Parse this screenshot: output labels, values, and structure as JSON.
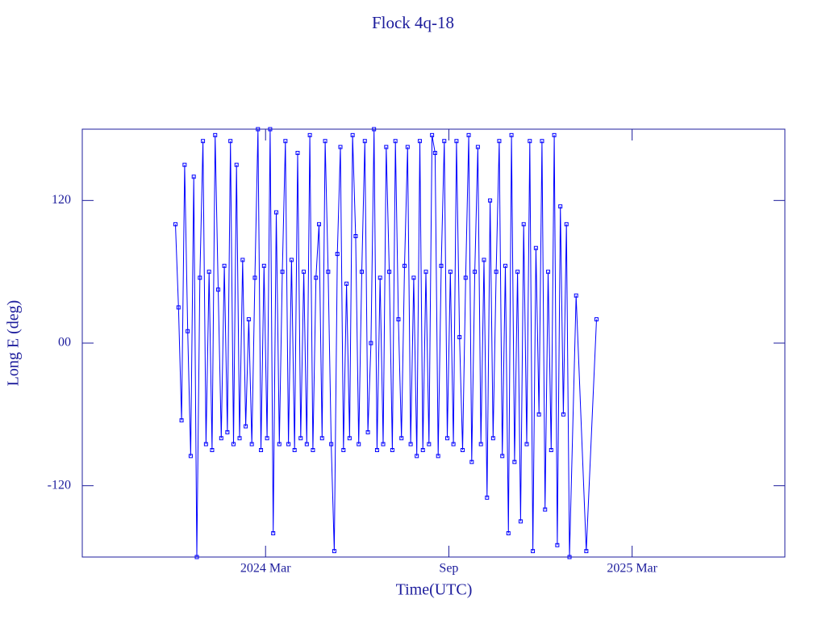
{
  "chart_data": {
    "type": "line",
    "title": "Flock 4q-18",
    "xlabel": "Time(UTC)",
    "ylabel": "Long E (deg)",
    "series": [
      {
        "color": "#0000ff",
        "x": [
          "2023-12",
          "2023-12",
          "2023-12",
          "2023-12",
          "2023-12",
          "2023-12",
          "2023-12",
          "2023-12",
          "2023-12",
          "2023-12",
          "2024-01",
          "2024-01",
          "2024-01",
          "2024-01",
          "2024-01",
          "2024-01",
          "2024-01",
          "2024-01",
          "2024-01",
          "2024-01",
          "2024-02",
          "2024-02",
          "2024-02",
          "2024-02",
          "2024-02",
          "2024-02",
          "2024-02",
          "2024-02",
          "2024-02",
          "2024-02",
          "2024-03",
          "2024-03",
          "2024-03",
          "2024-03",
          "2024-03",
          "2024-03",
          "2024-03",
          "2024-03",
          "2024-03",
          "2024-03",
          "2024-04",
          "2024-04",
          "2024-04",
          "2024-04",
          "2024-04",
          "2024-04",
          "2024-04",
          "2024-04",
          "2024-04",
          "2024-04",
          "2024-05",
          "2024-05",
          "2024-05",
          "2024-05",
          "2024-05",
          "2024-05",
          "2024-05",
          "2024-05",
          "2024-05",
          "2024-05",
          "2024-06",
          "2024-06",
          "2024-06",
          "2024-06",
          "2024-06",
          "2024-06",
          "2024-06",
          "2024-06",
          "2024-06",
          "2024-06",
          "2024-07",
          "2024-07",
          "2024-07",
          "2024-07",
          "2024-07",
          "2024-07",
          "2024-07",
          "2024-07",
          "2024-07",
          "2024-07",
          "2024-08",
          "2024-08",
          "2024-08",
          "2024-08",
          "2024-08",
          "2024-08",
          "2024-08",
          "2024-08",
          "2024-08",
          "2024-08",
          "2024-09",
          "2024-09",
          "2024-09",
          "2024-09",
          "2024-09",
          "2024-09",
          "2024-09",
          "2024-09",
          "2024-09",
          "2024-09",
          "2024-10",
          "2024-10",
          "2024-10",
          "2024-10",
          "2024-10",
          "2024-10",
          "2024-10",
          "2024-10",
          "2024-10",
          "2024-10",
          "2024-11",
          "2024-11",
          "2024-11",
          "2024-11",
          "2024-11",
          "2024-11",
          "2024-11",
          "2024-11",
          "2024-11",
          "2024-11",
          "2024-12",
          "2024-12",
          "2024-12",
          "2024-12",
          "2024-12",
          "2024-12",
          "2024-12",
          "2024-12",
          "2024-12",
          "2024-12",
          "2025-01",
          "2025-01",
          "2025-01"
        ],
        "values": [
          100,
          30,
          -65,
          150,
          10,
          -95,
          140,
          -180,
          55,
          170,
          -85,
          60,
          -90,
          175,
          45,
          -80,
          65,
          -75,
          170,
          -85,
          150,
          -80,
          70,
          -70,
          20,
          -85,
          55,
          180,
          -90,
          65,
          -80,
          180,
          -160,
          110,
          -85,
          60,
          170,
          -85,
          70,
          -90,
          160,
          -80,
          60,
          -85,
          175,
          -90,
          55,
          100,
          -80,
          170,
          60,
          -85,
          -175,
          75,
          165,
          -90,
          50,
          -80,
          175,
          90,
          -85,
          60,
          170,
          -75,
          0,
          180,
          -90,
          55,
          -85,
          165,
          60,
          -90,
          170,
          20,
          -80,
          65,
          165,
          -85,
          55,
          -95,
          170,
          -90,
          60,
          -85,
          175,
          160,
          -95,
          65,
          170,
          -80,
          60,
          -85,
          170,
          5,
          -90,
          55,
          175,
          -100,
          60,
          165,
          -85,
          70,
          -130,
          120,
          -80,
          60,
          170,
          -95,
          65,
          -160,
          175,
          -100,
          60,
          -150,
          100,
          -85,
          170,
          -175,
          80,
          -60,
          170,
          -140,
          60,
          -90,
          175,
          -170,
          115,
          -60,
          100,
          -180,
          40,
          -175,
          20
        ]
      }
    ],
    "xlim": [
      "2023-09",
      "2025-08"
    ],
    "xticks": [
      {
        "value": "2024-03",
        "label": "2024 Mar"
      },
      {
        "value": "2024-09",
        "label": "Sep"
      },
      {
        "value": "2025-03",
        "label": "2025 Mar"
      }
    ],
    "ylim": [
      -180,
      180
    ],
    "yticks": [
      {
        "value": -120,
        "label": "-120"
      },
      {
        "value": 0,
        "label": "00"
      },
      120
    ]
  }
}
